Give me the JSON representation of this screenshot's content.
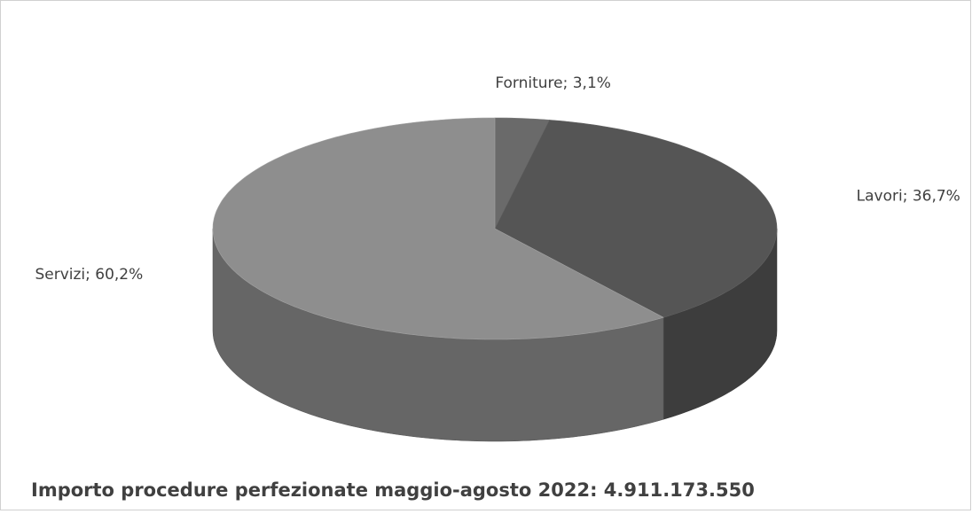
{
  "chart_data": {
    "type": "pie",
    "values": [
      3.1,
      36.7,
      60.2
    ],
    "value_labels": [
      "Forniture; 3,1%",
      "Lavori; 36,7%",
      "Servizi; 60,2%"
    ],
    "colors": [
      "#6a6a6a",
      "#555555",
      "#8e8e8e"
    ],
    "start_angle": 0,
    "direction": "clockwise",
    "annotation": "Importo procedure perfezionate maggio-agosto 2022: 4.911.173.550"
  }
}
